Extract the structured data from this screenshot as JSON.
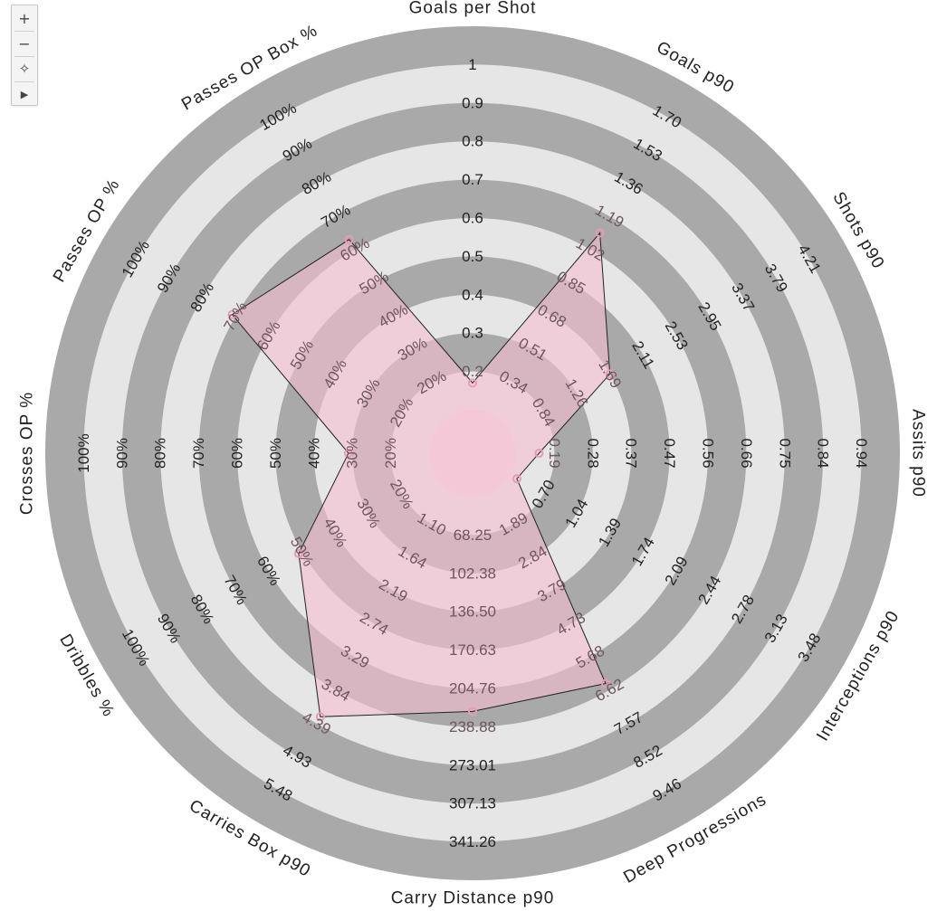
{
  "controls": {
    "zoom_in_label": "+",
    "zoom_out_label": "−",
    "clear_label": "✧",
    "play_label": "▶"
  },
  "colors": {
    "ring_dark": "#a9a9a9",
    "ring_light": "#e6e6e6",
    "fill": "#f4bfd0",
    "fill_opacity": 0.62,
    "stroke": "#222222",
    "marker": "#ea9ab4"
  },
  "chart_data": {
    "type": "radar",
    "title": "",
    "axes": [
      {
        "name": "Goals per Shot",
        "ticks": [
          "0.2",
          "0.3",
          "0.4",
          "0.5",
          "0.6",
          "0.7",
          "0.8",
          "0.9",
          "1"
        ]
      },
      {
        "name": "Goals p90",
        "ticks": [
          "0.34",
          "0.51",
          "0.68",
          "0.85",
          "1.02",
          "1.19",
          "1.36",
          "1.53",
          "1.70"
        ]
      },
      {
        "name": "Shots p90",
        "ticks": [
          "0.84",
          "1.26",
          "1.69",
          "2.11",
          "2.53",
          "2.95",
          "3.37",
          "3.79",
          "4.21"
        ]
      },
      {
        "name": "Assits p90",
        "ticks": [
          "0.19",
          "0.28",
          "0.37",
          "0.47",
          "0.56",
          "0.66",
          "0.75",
          "0.84",
          "0.94"
        ]
      },
      {
        "name": "Interceptions p90",
        "ticks": [
          "0.70",
          "1.04",
          "1.39",
          "1.74",
          "2.09",
          "2.44",
          "2.78",
          "3.13",
          "3.48"
        ]
      },
      {
        "name": "Deep Progressions",
        "ticks": [
          "1.89",
          "2.84",
          "3.79",
          "4.73",
          "5.68",
          "6.62",
          "7.57",
          "8.52",
          "9.46"
        ]
      },
      {
        "name": "Carry Distance p90",
        "ticks": [
          "68.25",
          "102.38",
          "136.50",
          "170.63",
          "204.76",
          "238.88",
          "273.01",
          "307.13",
          "341.26"
        ]
      },
      {
        "name": "Carries Box p90",
        "ticks": [
          "1.10",
          "1.64",
          "2.19",
          "2.74",
          "3.29",
          "3.84",
          "4.39",
          "4.93",
          "5.48"
        ]
      },
      {
        "name": "Dribbles %",
        "ticks": [
          "20%",
          "30%",
          "40%",
          "50%",
          "60%",
          "70%",
          "80%",
          "90%",
          "100%"
        ]
      },
      {
        "name": "Crosses OP %",
        "ticks": [
          "20%",
          "30%",
          "40%",
          "50%",
          "60%",
          "70%",
          "80%",
          "90%",
          "100%"
        ]
      },
      {
        "name": "Passes OP %",
        "ticks": [
          "20%",
          "30%",
          "40%",
          "50%",
          "60%",
          "70%",
          "80%",
          "90%",
          "100%"
        ]
      },
      {
        "name": "Passes OP Box %",
        "ticks": [
          "20%",
          "30%",
          "40%",
          "50%",
          "60%",
          "70%",
          "80%",
          "90%",
          "100%"
        ]
      }
    ],
    "values": [
      0.13,
      1.26,
      1.02,
      0.14,
      0.62,
      6.62,
      204.76,
      4.39,
      0.5,
      0.3,
      0.7,
      0.5
    ],
    "value_ring_levels": [
      0.07,
      0.55,
      0.3,
      0.06,
      0.02,
      0.58,
      0.56,
      0.68,
      0.41,
      0.21,
      0.61,
      0.53
    ]
  }
}
